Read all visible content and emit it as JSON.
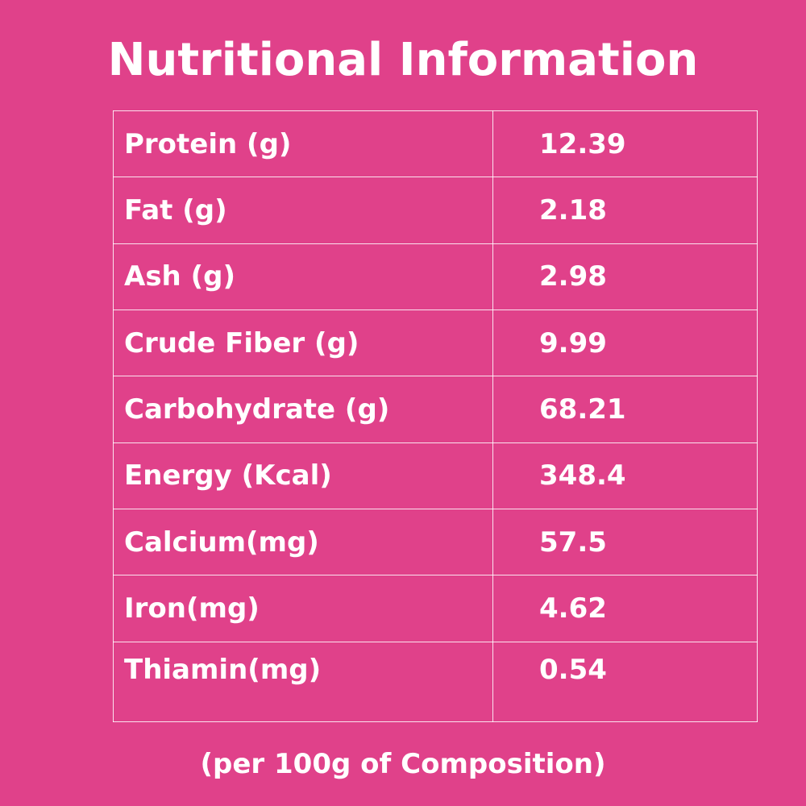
{
  "title": "Nutritional Information",
  "rows": [
    {
      "label": "Protein (g)",
      "value": "12.39"
    },
    {
      "label": "Fat (g)",
      "value": "2.18"
    },
    {
      "label": "Ash (g)",
      "value": "2.98"
    },
    {
      "label": "Crude Fiber (g)",
      "value": "9.99"
    },
    {
      "label": "Carbohydrate (g)",
      "value": "68.21"
    },
    {
      "label": "Energy (Kcal)",
      "value": "348.4"
    },
    {
      "label": "Calcium(mg)",
      "value": "57.5"
    },
    {
      "label": "Iron(mg)",
      "value": "4.62"
    },
    {
      "label": "Thiamin(mg)",
      "value": "0.54"
    }
  ],
  "footnote": "(per 100g of Composition)",
  "colors": {
    "background": "#e0418a",
    "text": "#ffffff",
    "border": "#ffffff"
  }
}
